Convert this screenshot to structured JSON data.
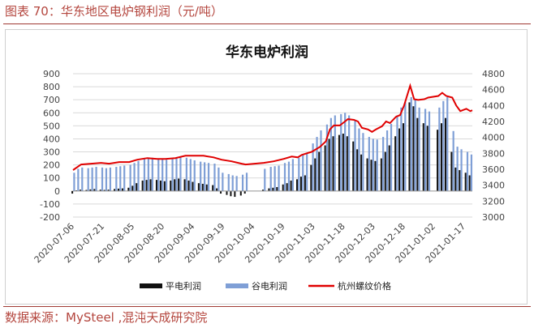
{
  "caption": "图表 70：华东地区电炉钢利润（元/吨）",
  "source": "数据来源：MySteel ,混沌天成研究院",
  "colors": {
    "flat": "#111111",
    "valley": "#7f9fd6",
    "price": "#e00000",
    "accent": "#b4463e"
  },
  "chart_data": {
    "type": "bar+line",
    "title": "华东电炉利润",
    "x_tick_labels": [
      "2020-07-06",
      "2020-07-21",
      "2020-08-05",
      "2020-08-20",
      "2020-09-04",
      "2020-09-19",
      "2020-10-04",
      "2020-10-19",
      "2020-11-03",
      "2020-11-18",
      "2020-12-03",
      "2020-12-18",
      "2021-01-02",
      "2021-01-17"
    ],
    "y_left": {
      "min": -200,
      "max": 900,
      "step": 100
    },
    "y_right": {
      "min": 3000,
      "max": 4800,
      "step": 200
    },
    "legend": [
      "平电利润",
      "谷电利润",
      "杭州螺纹价格"
    ],
    "x_start": "2020-07-06",
    "x_end": "2021-01-21",
    "series": [
      {
        "name": "平电利润",
        "type": "bar",
        "axis": "left",
        "points": [
          [
            "2020-07-06",
            -20
          ],
          [
            "2020-07-08",
            5
          ],
          [
            "2020-07-10",
            10
          ],
          [
            "2020-07-13",
            8
          ],
          [
            "2020-07-15",
            12
          ],
          [
            "2020-07-17",
            15
          ],
          [
            "2020-07-20",
            10
          ],
          [
            "2020-07-22",
            8
          ],
          [
            "2020-07-24",
            10
          ],
          [
            "2020-07-27",
            15
          ],
          [
            "2020-07-29",
            18
          ],
          [
            "2020-07-31",
            20
          ],
          [
            "2020-08-03",
            25
          ],
          [
            "2020-08-05",
            40
          ],
          [
            "2020-08-07",
            60
          ],
          [
            "2020-08-10",
            80
          ],
          [
            "2020-08-12",
            85
          ],
          [
            "2020-08-14",
            90
          ],
          [
            "2020-08-17",
            85
          ],
          [
            "2020-08-19",
            80
          ],
          [
            "2020-08-21",
            75
          ],
          [
            "2020-08-24",
            80
          ],
          [
            "2020-08-26",
            90
          ],
          [
            "2020-08-28",
            95
          ],
          [
            "2020-08-31",
            90
          ],
          [
            "2020-09-02",
            80
          ],
          [
            "2020-09-04",
            70
          ],
          [
            "2020-09-07",
            60
          ],
          [
            "2020-09-09",
            55
          ],
          [
            "2020-09-11",
            50
          ],
          [
            "2020-09-14",
            45
          ],
          [
            "2020-09-16",
            20
          ],
          [
            "2020-09-18",
            -20
          ],
          [
            "2020-09-21",
            -30
          ],
          [
            "2020-09-23",
            -40
          ],
          [
            "2020-09-25",
            -45
          ],
          [
            "2020-09-28",
            -35
          ],
          [
            "2020-09-30",
            -20
          ],
          [
            "2020-10-09",
            10
          ],
          [
            "2020-10-12",
            20
          ],
          [
            "2020-10-14",
            25
          ],
          [
            "2020-10-16",
            30
          ],
          [
            "2020-10-19",
            50
          ],
          [
            "2020-10-21",
            60
          ],
          [
            "2020-10-23",
            80
          ],
          [
            "2020-10-26",
            90
          ],
          [
            "2020-10-28",
            110
          ],
          [
            "2020-10-30",
            120
          ],
          [
            "2020-11-02",
            200
          ],
          [
            "2020-11-04",
            250
          ],
          [
            "2020-11-06",
            300
          ],
          [
            "2020-11-09",
            350
          ],
          [
            "2020-11-11",
            400
          ],
          [
            "2020-11-13",
            420
          ],
          [
            "2020-11-16",
            430
          ],
          [
            "2020-11-18",
            440
          ],
          [
            "2020-11-20",
            420
          ],
          [
            "2020-11-23",
            380
          ],
          [
            "2020-11-25",
            320
          ],
          [
            "2020-11-27",
            280
          ],
          [
            "2020-11-30",
            250
          ],
          [
            "2020-12-02",
            240
          ],
          [
            "2020-12-04",
            230
          ],
          [
            "2020-12-07",
            250
          ],
          [
            "2020-12-09",
            300
          ],
          [
            "2020-12-11",
            350
          ],
          [
            "2020-12-14",
            420
          ],
          [
            "2020-12-16",
            480
          ],
          [
            "2020-12-18",
            520
          ],
          [
            "2020-12-21",
            680
          ],
          [
            "2020-12-23",
            650
          ],
          [
            "2020-12-25",
            560
          ],
          [
            "2020-12-28",
            520
          ],
          [
            "2020-12-30",
            500
          ],
          [
            "2021-01-04",
            470
          ],
          [
            "2021-01-06",
            520
          ],
          [
            "2021-01-08",
            560
          ],
          [
            "2021-01-11",
            300
          ],
          [
            "2021-01-13",
            180
          ],
          [
            "2021-01-15",
            160
          ],
          [
            "2021-01-18",
            140
          ],
          [
            "2021-01-20",
            120
          ]
        ]
      },
      {
        "name": "谷电利润",
        "type": "bar",
        "axis": "left",
        "points": [
          [
            "2020-07-06",
            140
          ],
          [
            "2020-07-08",
            170
          ],
          [
            "2020-07-10",
            180
          ],
          [
            "2020-07-13",
            175
          ],
          [
            "2020-07-15",
            180
          ],
          [
            "2020-07-17",
            185
          ],
          [
            "2020-07-20",
            180
          ],
          [
            "2020-07-22",
            175
          ],
          [
            "2020-07-24",
            180
          ],
          [
            "2020-07-27",
            185
          ],
          [
            "2020-07-29",
            190
          ],
          [
            "2020-07-31",
            195
          ],
          [
            "2020-08-03",
            200
          ],
          [
            "2020-08-05",
            215
          ],
          [
            "2020-08-07",
            230
          ],
          [
            "2020-08-10",
            245
          ],
          [
            "2020-08-12",
            250
          ],
          [
            "2020-08-14",
            255
          ],
          [
            "2020-08-17",
            250
          ],
          [
            "2020-08-19",
            245
          ],
          [
            "2020-08-21",
            240
          ],
          [
            "2020-08-24",
            245
          ],
          [
            "2020-08-26",
            255
          ],
          [
            "2020-08-28",
            260
          ],
          [
            "2020-08-31",
            255
          ],
          [
            "2020-09-02",
            245
          ],
          [
            "2020-09-04",
            235
          ],
          [
            "2020-09-07",
            225
          ],
          [
            "2020-09-09",
            220
          ],
          [
            "2020-09-11",
            215
          ],
          [
            "2020-09-14",
            210
          ],
          [
            "2020-09-16",
            180
          ],
          [
            "2020-09-18",
            140
          ],
          [
            "2020-09-21",
            130
          ],
          [
            "2020-09-23",
            120
          ],
          [
            "2020-09-25",
            115
          ],
          [
            "2020-09-28",
            125
          ],
          [
            "2020-09-30",
            140
          ],
          [
            "2020-10-09",
            170
          ],
          [
            "2020-10-12",
            185
          ],
          [
            "2020-10-14",
            190
          ],
          [
            "2020-10-16",
            195
          ],
          [
            "2020-10-19",
            215
          ],
          [
            "2020-10-21",
            225
          ],
          [
            "2020-10-23",
            245
          ],
          [
            "2020-10-26",
            255
          ],
          [
            "2020-10-28",
            275
          ],
          [
            "2020-10-30",
            285
          ],
          [
            "2020-11-02",
            365
          ],
          [
            "2020-11-04",
            415
          ],
          [
            "2020-11-06",
            465
          ],
          [
            "2020-11-09",
            510
          ],
          [
            "2020-11-11",
            560
          ],
          [
            "2020-11-13",
            580
          ],
          [
            "2020-11-16",
            590
          ],
          [
            "2020-11-18",
            600
          ],
          [
            "2020-11-20",
            580
          ],
          [
            "2020-11-23",
            540
          ],
          [
            "2020-11-25",
            480
          ],
          [
            "2020-11-27",
            445
          ],
          [
            "2020-11-30",
            415
          ],
          [
            "2020-12-02",
            400
          ],
          [
            "2020-12-04",
            395
          ],
          [
            "2020-12-07",
            415
          ],
          [
            "2020-12-09",
            465
          ],
          [
            "2020-12-11",
            515
          ],
          [
            "2020-12-14",
            580
          ],
          [
            "2020-12-16",
            640
          ],
          [
            "2020-12-18",
            680
          ],
          [
            "2020-12-21",
            720
          ],
          [
            "2020-12-23",
            700
          ],
          [
            "2020-12-25",
            640
          ],
          [
            "2020-12-28",
            630
          ],
          [
            "2020-12-30",
            610
          ],
          [
            "2021-01-04",
            640
          ],
          [
            "2021-01-06",
            690
          ],
          [
            "2021-01-08",
            720
          ],
          [
            "2021-01-11",
            460
          ],
          [
            "2021-01-13",
            340
          ],
          [
            "2021-01-15",
            320
          ],
          [
            "2021-01-18",
            300
          ],
          [
            "2021-01-20",
            280
          ]
        ]
      },
      {
        "name": "杭州螺纹价格",
        "type": "line",
        "axis": "right",
        "points": [
          [
            "2020-07-06",
            3590
          ],
          [
            "2020-07-10",
            3660
          ],
          [
            "2020-07-15",
            3670
          ],
          [
            "2020-07-20",
            3680
          ],
          [
            "2020-07-24",
            3670
          ],
          [
            "2020-07-29",
            3690
          ],
          [
            "2020-08-03",
            3690
          ],
          [
            "2020-08-07",
            3720
          ],
          [
            "2020-08-12",
            3740
          ],
          [
            "2020-08-17",
            3730
          ],
          [
            "2020-08-21",
            3730
          ],
          [
            "2020-08-26",
            3740
          ],
          [
            "2020-08-31",
            3770
          ],
          [
            "2020-09-04",
            3770
          ],
          [
            "2020-09-09",
            3770
          ],
          [
            "2020-09-14",
            3750
          ],
          [
            "2020-09-18",
            3720
          ],
          [
            "2020-09-23",
            3700
          ],
          [
            "2020-09-28",
            3670
          ],
          [
            "2020-09-30",
            3660
          ],
          [
            "2020-10-09",
            3680
          ],
          [
            "2020-10-14",
            3700
          ],
          [
            "2020-10-19",
            3730
          ],
          [
            "2020-10-23",
            3760
          ],
          [
            "2020-10-26",
            3750
          ],
          [
            "2020-10-28",
            3780
          ],
          [
            "2020-11-02",
            3820
          ],
          [
            "2020-11-06",
            3880
          ],
          [
            "2020-11-09",
            3950
          ],
          [
            "2020-11-11",
            4100
          ],
          [
            "2020-11-13",
            4150
          ],
          [
            "2020-11-16",
            4150
          ],
          [
            "2020-11-18",
            4190
          ],
          [
            "2020-11-20",
            4230
          ],
          [
            "2020-11-23",
            4220
          ],
          [
            "2020-11-25",
            4200
          ],
          [
            "2020-11-27",
            4120
          ],
          [
            "2020-11-30",
            4100
          ],
          [
            "2020-12-02",
            4070
          ],
          [
            "2020-12-04",
            4100
          ],
          [
            "2020-12-07",
            4140
          ],
          [
            "2020-12-09",
            4200
          ],
          [
            "2020-12-11",
            4180
          ],
          [
            "2020-12-14",
            4260
          ],
          [
            "2020-12-16",
            4280
          ],
          [
            "2020-12-18",
            4400
          ],
          [
            "2020-12-21",
            4650
          ],
          [
            "2020-12-23",
            4480
          ],
          [
            "2020-12-25",
            4470
          ],
          [
            "2020-12-28",
            4480
          ],
          [
            "2020-12-30",
            4500
          ],
          [
            "2021-01-04",
            4520
          ],
          [
            "2021-01-06",
            4560
          ],
          [
            "2021-01-08",
            4520
          ],
          [
            "2021-01-11",
            4500
          ],
          [
            "2021-01-13",
            4400
          ],
          [
            "2021-01-15",
            4330
          ],
          [
            "2021-01-18",
            4360
          ],
          [
            "2021-01-20",
            4330
          ],
          [
            "2021-01-21",
            4340
          ]
        ]
      }
    ]
  }
}
